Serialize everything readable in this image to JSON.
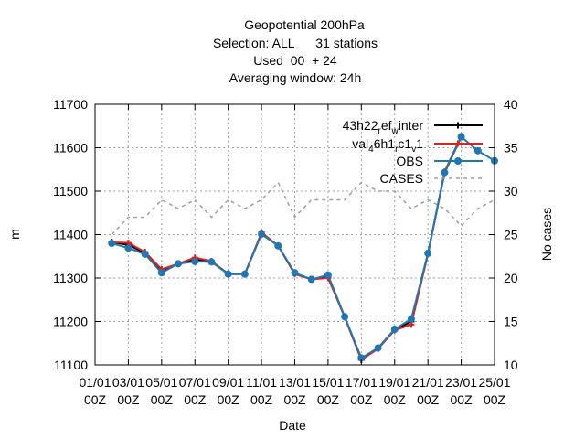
{
  "chart_data": {
    "type": "line",
    "title_lines": [
      "Geopotential 200hPa",
      "Selection: ALL      31 stations",
      "Used  00  + 24",
      "Averaging window: 24h"
    ],
    "xlabel": "Date",
    "ylabel": "m",
    "y2label": "No cases",
    "ylim": [
      11100,
      11700
    ],
    "y2lim": [
      10,
      40
    ],
    "yticks": [
      11100,
      11200,
      11300,
      11400,
      11500,
      11600,
      11700
    ],
    "y2ticks": [
      10,
      15,
      20,
      25,
      30,
      35,
      40
    ],
    "xlim": [
      0,
      24
    ],
    "xticks": [
      {
        "pos": 0,
        "line1": "01/01",
        "line2": "00Z"
      },
      {
        "pos": 2,
        "line1": "03/01",
        "line2": "00Z"
      },
      {
        "pos": 4,
        "line1": "05/01",
        "line2": "00Z"
      },
      {
        "pos": 6,
        "line1": "07/01",
        "line2": "00Z"
      },
      {
        "pos": 8,
        "line1": "09/01",
        "line2": "00Z"
      },
      {
        "pos": 10,
        "line1": "11/01",
        "line2": "00Z"
      },
      {
        "pos": 12,
        "line1": "13/01",
        "line2": "00Z"
      },
      {
        "pos": 14,
        "line1": "15/01",
        "line2": "00Z"
      },
      {
        "pos": 16,
        "line1": "17/01",
        "line2": "00Z"
      },
      {
        "pos": 18,
        "line1": "19/01",
        "line2": "00Z"
      },
      {
        "pos": 20,
        "line1": "21/01",
        "line2": "00Z"
      },
      {
        "pos": 22,
        "line1": "23/01",
        "line2": "00Z"
      },
      {
        "pos": 24,
        "line1": "25/01",
        "line2": "00Z"
      }
    ],
    "legend_position": "top-right",
    "series": [
      {
        "name": "43h22 ref_winter",
        "legend_parts": [
          "43h22",
          "r",
          "ef",
          "w",
          "inter"
        ],
        "color": "#000000",
        "axis": "y",
        "style": "solid",
        "marker": "plus",
        "x": [
          1,
          2,
          3,
          4,
          5,
          6,
          7,
          8,
          9,
          10,
          11,
          12,
          13,
          14,
          15,
          16,
          17,
          18,
          19,
          20,
          21,
          22
        ],
        "values": [
          11383,
          11376,
          11358,
          11317,
          11333,
          11342,
          11338,
          11310,
          11310,
          11402,
          11375,
          11310,
          11297,
          11302,
          11210,
          11112,
          11138,
          11180,
          11200,
          11356,
          11542,
          11625
        ]
      },
      {
        "name": "val_46h1_rc1_v1",
        "legend_parts": [
          "val",
          "4",
          "6h1",
          "r",
          "c1",
          "v",
          "1"
        ],
        "color": "#e0201b",
        "axis": "y",
        "style": "solid",
        "marker": "plus",
        "x": [
          1,
          2,
          3,
          4,
          5,
          6,
          7,
          8,
          9,
          10,
          11,
          12,
          13,
          14,
          15,
          16,
          17,
          18,
          19,
          20,
          21,
          22
        ],
        "values": [
          11382,
          11381,
          11360,
          11320,
          11333,
          11347,
          11339,
          11309,
          11309,
          11405,
          11374,
          11309,
          11297,
          11300,
          11211,
          11112,
          11137,
          11180,
          11193,
          11355,
          11545,
          11627
        ]
      },
      {
        "name": "OBS",
        "color": "#1f77b4",
        "axis": "y",
        "style": "solid",
        "marker": "circle",
        "x": [
          1,
          2,
          3,
          4,
          5,
          6,
          7,
          8,
          9,
          10,
          11,
          12,
          13,
          14,
          15,
          16,
          17,
          18,
          19,
          20,
          21,
          22,
          23,
          24
        ],
        "values": [
          11380,
          11369,
          11355,
          11312,
          11333,
          11338,
          11337,
          11309,
          11309,
          11401,
          11374,
          11312,
          11297,
          11307,
          11211,
          11116,
          11139,
          11182,
          11206,
          11357,
          11543,
          11625,
          11593,
          11570
        ]
      },
      {
        "name": "CASES",
        "color": "#a0a0a0",
        "axis": "y2",
        "style": "dashed",
        "marker": "none",
        "x": [
          1,
          2,
          3,
          4,
          5,
          6,
          7,
          8,
          9,
          10,
          11,
          12,
          13,
          14,
          15,
          16,
          17,
          18,
          19,
          20,
          21,
          22,
          23,
          24
        ],
        "values": [
          25,
          27,
          27,
          29,
          28,
          29,
          27,
          29,
          28,
          29,
          31,
          27,
          29,
          29,
          29,
          31,
          30,
          30,
          28,
          29,
          28,
          26,
          28,
          29
        ]
      }
    ]
  }
}
